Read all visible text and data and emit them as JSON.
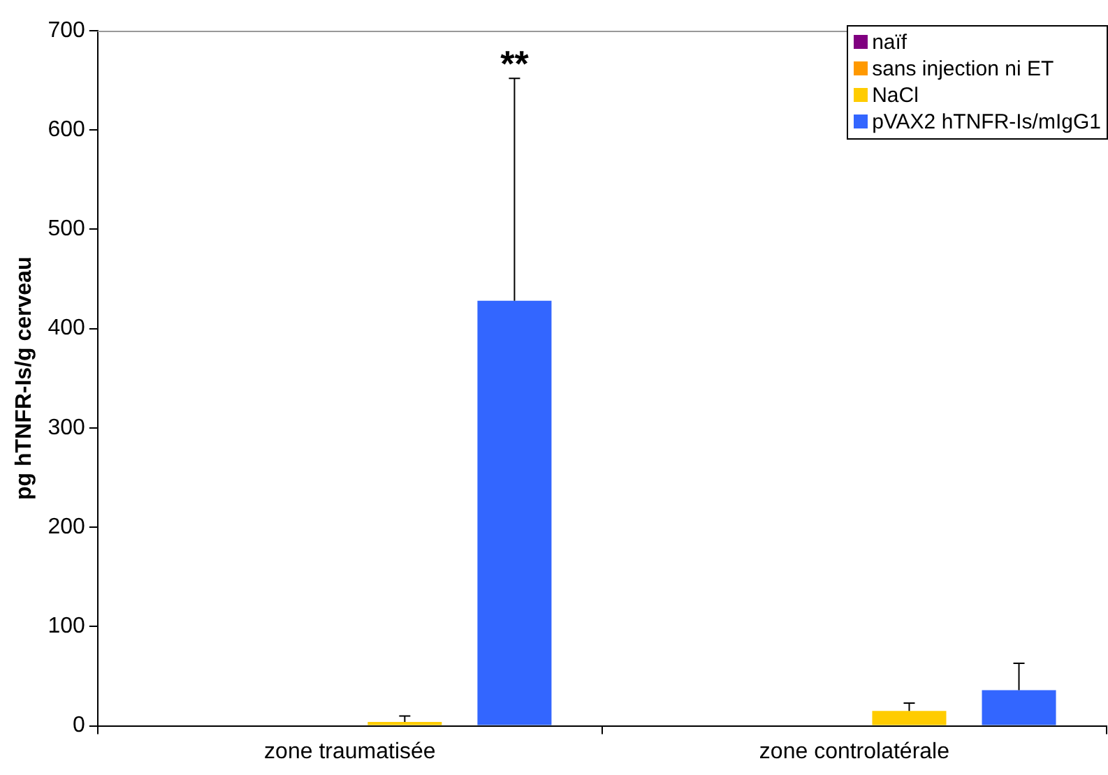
{
  "chart_data": {
    "type": "bar",
    "ylabel": "pg hTNFR-Is/g cerveau",
    "categories": [
      "zone traumatisée",
      "zone controlatérale"
    ],
    "series": [
      {
        "name": "naïf",
        "color": "#800080",
        "values": [
          0,
          0
        ],
        "errors": [
          null,
          null
        ]
      },
      {
        "name": "sans injection ni ET",
        "color": "#ff9900",
        "values": [
          0,
          0
        ],
        "errors": [
          null,
          null
        ]
      },
      {
        "name": "NaCl",
        "color": "#ffcc00",
        "values": [
          4,
          15
        ],
        "errors": [
          [
            4,
            10
          ],
          [
            15,
            23
          ]
        ]
      },
      {
        "name": "pVAX2 hTNFR-Is/mIgG1",
        "color": "#3366ff",
        "values": [
          428,
          36
        ],
        "errors": [
          [
            428,
            652
          ],
          [
            36,
            63
          ]
        ]
      }
    ],
    "ylim": [
      0,
      700
    ],
    "yticks": [
      0,
      100,
      200,
      300,
      400,
      500,
      600,
      700
    ],
    "grid": false,
    "legend": "top right",
    "annotations": [
      "**"
    ]
  }
}
